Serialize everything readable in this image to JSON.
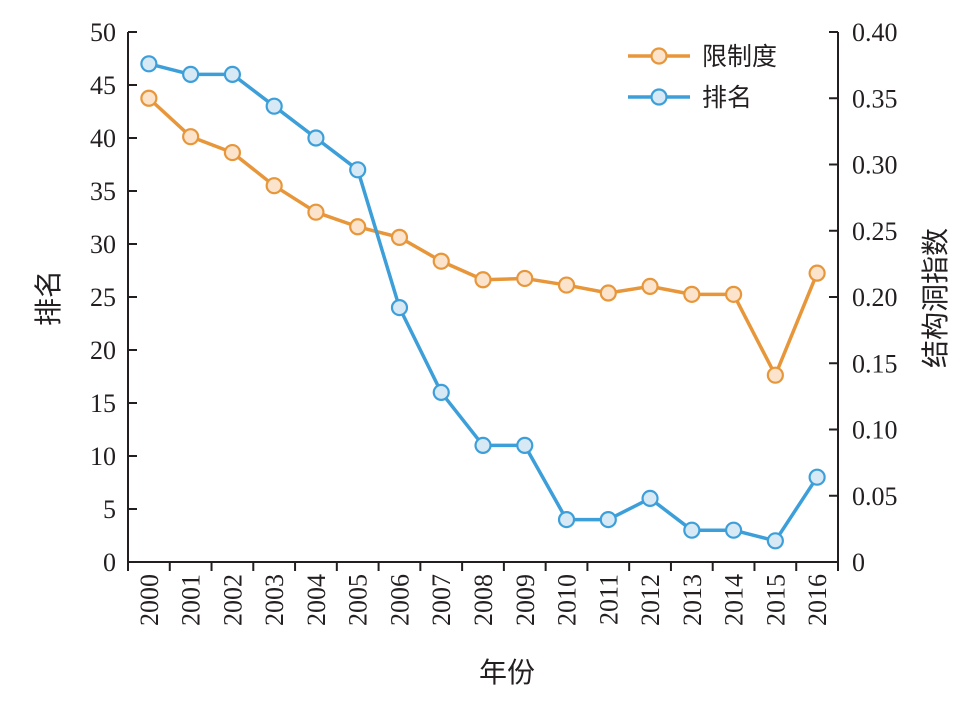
{
  "chart_data": {
    "type": "line",
    "title": "",
    "xlabel": "年份",
    "ylabel_left": "排名",
    "ylabel_right": "结构洞指数",
    "categories": [
      "2000",
      "2001",
      "2002",
      "2003",
      "2004",
      "2005",
      "2006",
      "2007",
      "2008",
      "2009",
      "2010",
      "2011",
      "2012",
      "2013",
      "2014",
      "2015",
      "2016"
    ],
    "y_left": {
      "range": [
        0,
        50
      ],
      "ticks": [
        "0",
        "5",
        "10",
        "15",
        "20",
        "25",
        "30",
        "35",
        "40",
        "45",
        "50"
      ]
    },
    "y_right": {
      "range": [
        0,
        0.4
      ],
      "ticks": [
        "0",
        "0.05",
        "0.10",
        "0.15",
        "0.20",
        "0.25",
        "0.30",
        "0.35",
        "0.40"
      ]
    },
    "series": [
      {
        "name": "限制度",
        "axis": "right",
        "color": "#e8963a",
        "marker_fill": "#fbe3cc",
        "values": [
          0.35,
          0.321,
          0.309,
          0.284,
          0.264,
          0.253,
          0.245,
          0.227,
          0.213,
          0.214,
          0.209,
          0.203,
          0.208,
          0.202,
          0.202,
          0.141,
          0.218
        ]
      },
      {
        "name": "排名",
        "axis": "left",
        "color": "#3d9fd9",
        "marker_fill": "#d6e9f5",
        "values": [
          47,
          46,
          46,
          43,
          40,
          37,
          24,
          16,
          11,
          11,
          4,
          4,
          6,
          3,
          3,
          2,
          8
        ]
      }
    ],
    "legend": {
      "position": "top-right",
      "entries": [
        "限制度",
        "排名"
      ]
    },
    "grid": false
  }
}
